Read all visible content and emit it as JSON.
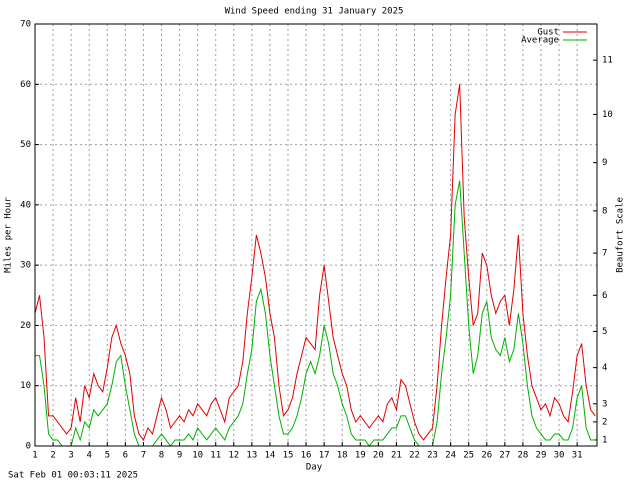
{
  "chart_data": {
    "type": "line",
    "title": "Wind Speed ending 31 January 2025",
    "x_label": "Day",
    "y_label": "Miles per Hour",
    "y2_label": "Beaufort Scale",
    "footer": "Sat Feb 01 00:03:11 2025",
    "grid": true,
    "legend": "top-right",
    "xlim": [
      1,
      32.1
    ],
    "xticks": [
      1,
      2,
      3,
      4,
      5,
      6,
      7,
      8,
      9,
      10,
      11,
      12,
      13,
      14,
      15,
      16,
      17,
      18,
      19,
      20,
      21,
      22,
      23,
      24,
      25,
      26,
      27,
      28,
      29,
      30,
      31
    ],
    "ylim": [
      0,
      70
    ],
    "yticks": [
      0,
      10,
      20,
      30,
      40,
      50,
      60,
      70
    ],
    "y2lim": [
      0,
      70
    ],
    "y2ticks": [
      1,
      {
        "value": 4,
        "label": "2"
      },
      {
        "value": 7,
        "label": "3"
      },
      {
        "value": 13,
        "label": "4"
      },
      {
        "value": 19,
        "label": "5"
      },
      {
        "value": 25,
        "label": "6"
      },
      {
        "value": 32,
        "label": "7"
      },
      {
        "value": 39,
        "label": "8"
      },
      {
        "value": 47,
        "label": "9"
      },
      {
        "value": 55,
        "label": "10"
      },
      {
        "value": 64,
        "label": "11"
      }
    ],
    "x": [
      1,
      1.25,
      1.5,
      1.75,
      2,
      2.25,
      2.5,
      2.75,
      3,
      3.25,
      3.5,
      3.75,
      4,
      4.25,
      4.5,
      4.75,
      5,
      5.25,
      5.5,
      5.75,
      6,
      6.25,
      6.5,
      6.75,
      7,
      7.25,
      7.5,
      7.75,
      8,
      8.25,
      8.5,
      8.75,
      9,
      9.25,
      9.5,
      9.75,
      10,
      10.25,
      10.5,
      10.75,
      11,
      11.25,
      11.5,
      11.75,
      12,
      12.25,
      12.5,
      12.75,
      13,
      13.25,
      13.5,
      13.75,
      14,
      14.25,
      14.5,
      14.75,
      15,
      15.25,
      15.5,
      15.75,
      16,
      16.25,
      16.5,
      16.75,
      17,
      17.25,
      17.5,
      17.75,
      18,
      18.25,
      18.5,
      18.75,
      19,
      19.25,
      19.5,
      19.75,
      20,
      20.25,
      20.5,
      20.75,
      21,
      21.25,
      21.5,
      21.75,
      22,
      22.25,
      22.5,
      22.75,
      23,
      23.25,
      23.5,
      23.75,
      24,
      24.25,
      24.5,
      24.75,
      25,
      25.25,
      25.5,
      25.75,
      26,
      26.25,
      26.5,
      26.75,
      27,
      27.25,
      27.5,
      27.75,
      28,
      28.25,
      28.5,
      28.75,
      29,
      29.25,
      29.5,
      29.75,
      30,
      30.25,
      30.5,
      30.75,
      31,
      31.25,
      31.5,
      31.75,
      32
    ],
    "series": [
      {
        "name": "Gust",
        "color": "#e00000",
        "values": [
          22,
          25,
          18,
          5,
          5,
          4,
          3,
          2,
          3,
          8,
          4,
          10,
          8,
          12,
          10,
          9,
          13,
          18,
          20,
          17,
          15,
          12,
          5,
          2,
          1,
          3,
          2,
          5,
          8,
          6,
          3,
          4,
          5,
          4,
          6,
          5,
          7,
          6,
          5,
          7,
          8,
          6,
          4,
          8,
          9,
          10,
          14,
          22,
          28,
          35,
          32,
          28,
          22,
          18,
          10,
          5,
          6,
          8,
          12,
          15,
          18,
          17,
          16,
          25,
          30,
          24,
          18,
          15,
          12,
          10,
          6,
          4,
          5,
          4,
          3,
          4,
          5,
          4,
          7,
          8,
          6,
          11,
          10,
          7,
          4,
          2,
          1,
          2,
          3,
          10,
          20,
          28,
          35,
          55,
          60,
          38,
          28,
          20,
          22,
          32,
          30,
          25,
          22,
          24,
          25,
          20,
          26,
          35,
          22,
          15,
          10,
          8,
          6,
          7,
          5,
          8,
          7,
          5,
          4,
          9,
          15,
          17,
          10,
          6,
          5
        ]
      },
      {
        "name": "Average",
        "color": "#00b000",
        "values": [
          15,
          15,
          10,
          2,
          1,
          1,
          0,
          0,
          0,
          3,
          1,
          4,
          3,
          6,
          5,
          6,
          7,
          10,
          14,
          15,
          10,
          6,
          2,
          0,
          0,
          0,
          0,
          1,
          2,
          1,
          0,
          1,
          1,
          1,
          2,
          1,
          3,
          2,
          1,
          2,
          3,
          2,
          1,
          3,
          4,
          5,
          7,
          12,
          16,
          24,
          26,
          22,
          15,
          10,
          5,
          2,
          2,
          3,
          5,
          8,
          12,
          14,
          12,
          15,
          20,
          17,
          12,
          10,
          7,
          5,
          2,
          1,
          1,
          1,
          0,
          1,
          1,
          1,
          2,
          3,
          3,
          5,
          5,
          3,
          1,
          0,
          0,
          0,
          0,
          4,
          12,
          18,
          25,
          40,
          44,
          32,
          20,
          12,
          15,
          22,
          24,
          18,
          16,
          15,
          18,
          14,
          16,
          22,
          17,
          10,
          5,
          3,
          2,
          1,
          1,
          2,
          2,
          1,
          1,
          3,
          8,
          10,
          3,
          1,
          1
        ]
      }
    ]
  }
}
